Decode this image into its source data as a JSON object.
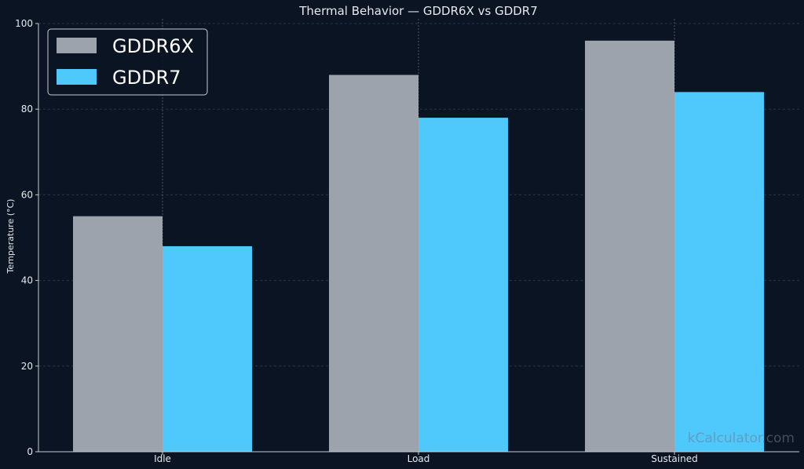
{
  "chart_data": {
    "type": "bar",
    "title": "Thermal Behavior — GDDR6X vs GDDR7",
    "xlabel": "",
    "ylabel": "Temperature (°C)",
    "categories": [
      "Idle",
      "Load",
      "Sustained"
    ],
    "series": [
      {
        "name": "GDDR6X",
        "values": [
          55,
          88,
          96
        ],
        "color": "#9ca3ad"
      },
      {
        "name": "GDDR7",
        "values": [
          48,
          78,
          84
        ],
        "color": "#4fc8fc"
      }
    ],
    "ylim": [
      0,
      100
    ],
    "yticks": [
      "0",
      "20",
      "40",
      "60",
      "80",
      "100"
    ],
    "grid": true,
    "legend_position": "top-left",
    "watermark": "kCalculator.com"
  },
  "colors": {
    "background": "#0b1422",
    "axis": "#c8ccd3",
    "grid": "#2a3547",
    "text": "#e6e9ee"
  }
}
